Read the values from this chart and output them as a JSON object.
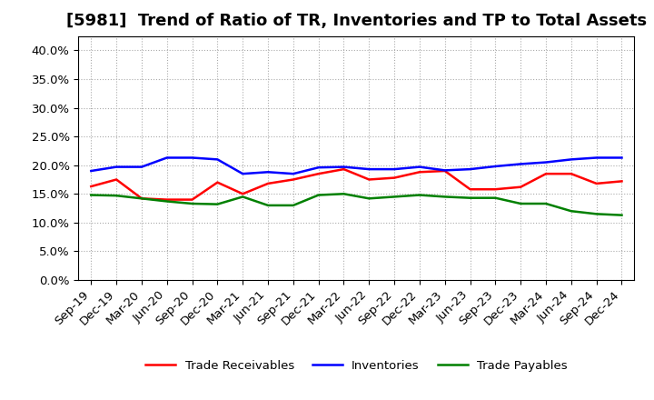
{
  "title": "[5981]  Trend of Ratio of TR, Inventories and TP to Total Assets",
  "x_labels": [
    "Sep-19",
    "Dec-19",
    "Mar-20",
    "Jun-20",
    "Sep-20",
    "Dec-20",
    "Mar-21",
    "Jun-21",
    "Sep-21",
    "Dec-21",
    "Mar-22",
    "Jun-22",
    "Sep-22",
    "Dec-22",
    "Mar-23",
    "Jun-23",
    "Sep-23",
    "Dec-23",
    "Mar-24",
    "Jun-24",
    "Sep-24",
    "Dec-24"
  ],
  "trade_receivables": [
    0.163,
    0.175,
    0.142,
    0.14,
    0.14,
    0.17,
    0.15,
    0.168,
    0.175,
    0.185,
    0.193,
    0.175,
    0.178,
    0.188,
    0.19,
    0.158,
    0.158,
    0.162,
    0.185,
    0.185,
    0.168,
    0.172
  ],
  "inventories": [
    0.19,
    0.197,
    0.197,
    0.213,
    0.213,
    0.21,
    0.185,
    0.188,
    0.185,
    0.196,
    0.197,
    0.193,
    0.193,
    0.197,
    0.191,
    0.193,
    0.198,
    0.202,
    0.205,
    0.21,
    0.213,
    0.213
  ],
  "trade_payables": [
    0.148,
    0.147,
    0.142,
    0.137,
    0.133,
    0.132,
    0.145,
    0.13,
    0.13,
    0.148,
    0.15,
    0.142,
    0.145,
    0.148,
    0.145,
    0.143,
    0.143,
    0.133,
    0.133,
    0.12,
    0.115,
    0.113
  ],
  "tr_color": "#FF0000",
  "inv_color": "#0000FF",
  "tp_color": "#008000",
  "ylim": [
    0.0,
    0.425
  ],
  "yticks": [
    0.0,
    0.05,
    0.1,
    0.15,
    0.2,
    0.25,
    0.3,
    0.35,
    0.4
  ],
  "legend_labels": [
    "Trade Receivables",
    "Inventories",
    "Trade Payables"
  ],
  "bg_color": "#FFFFFF",
  "grid_color": "#AAAAAA",
  "line_width": 1.8,
  "title_fontsize": 13,
  "tick_fontsize": 9.5
}
